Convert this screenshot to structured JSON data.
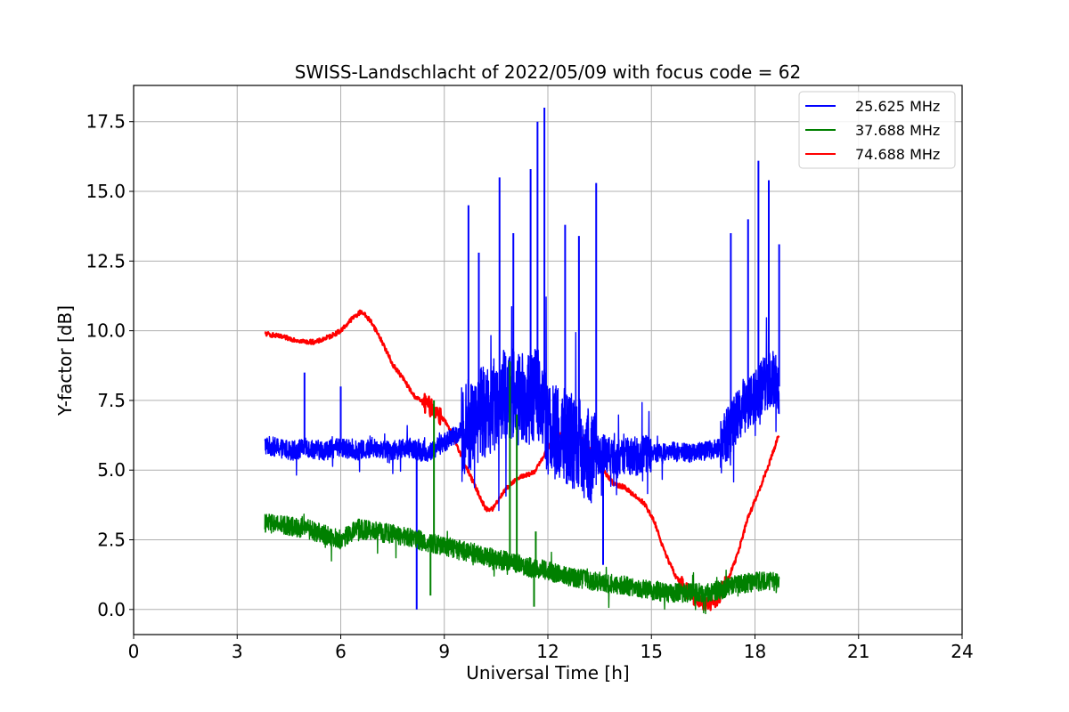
{
  "chart_data": {
    "type": "line",
    "title": "SWISS-Landschlacht of 2022/05/09 with focus code = 62",
    "xlabel": "Universal Time [h]",
    "ylabel": "Y-factor [dB]",
    "xlim": [
      0,
      24
    ],
    "ylim": [
      -0.9,
      18.8
    ],
    "x_ticks": [
      "0",
      "3",
      "6",
      "9",
      "12",
      "15",
      "18",
      "21",
      "24"
    ],
    "y_ticks": [
      "0.0",
      "2.5",
      "5.0",
      "7.5",
      "10.0",
      "12.5",
      "15.0",
      "17.5"
    ],
    "grid": true,
    "legend_position": "top-right",
    "series": [
      {
        "name": "25.625 MHz",
        "color": "#0000ff",
        "x": [
          3.8,
          4.2,
          4.6,
          5.0,
          5.5,
          6.0,
          6.5,
          7.0,
          7.5,
          8.0,
          8.5,
          9.0,
          9.4,
          9.7,
          10.0,
          10.3,
          10.6,
          11.0,
          11.4,
          11.8,
          12.0,
          12.4,
          12.8,
          13.2,
          13.6,
          14.0,
          14.5,
          15.0,
          15.5,
          16.0,
          16.5,
          17.0,
          17.3,
          17.6,
          17.9,
          18.2,
          18.5,
          18.7
        ],
        "y": [
          5.9,
          5.8,
          5.7,
          5.8,
          5.7,
          5.8,
          5.7,
          5.8,
          5.7,
          5.8,
          5.6,
          6.0,
          6.3,
          6.6,
          7.0,
          7.2,
          7.6,
          7.8,
          7.5,
          7.8,
          6.5,
          6.2,
          6.0,
          5.5,
          5.6,
          5.4,
          5.5,
          5.6,
          5.7,
          5.6,
          5.7,
          5.8,
          6.5,
          7.2,
          7.5,
          8.0,
          8.3,
          8.0
        ],
        "spikes": [
          [
            4.95,
            8.5
          ],
          [
            6.0,
            8.0
          ],
          [
            8.2,
            0.0
          ],
          [
            9.7,
            14.5
          ],
          [
            10.0,
            12.8
          ],
          [
            10.6,
            15.5
          ],
          [
            11.0,
            13.5
          ],
          [
            11.5,
            15.8
          ],
          [
            11.7,
            17.5
          ],
          [
            11.9,
            18.0
          ],
          [
            12.5,
            13.8
          ],
          [
            12.9,
            13.4
          ],
          [
            13.4,
            15.3
          ],
          [
            13.6,
            1.6
          ],
          [
            17.3,
            13.5
          ],
          [
            17.8,
            14.0
          ],
          [
            18.1,
            16.1
          ],
          [
            18.4,
            15.4
          ],
          [
            18.7,
            13.1
          ]
        ]
      },
      {
        "name": "37.688 MHz",
        "color": "#008000",
        "x": [
          3.8,
          4.5,
          5.0,
          5.5,
          6.0,
          6.5,
          7.0,
          7.5,
          8.0,
          8.5,
          9.0,
          9.5,
          10.0,
          10.5,
          11.0,
          11.5,
          12.0,
          12.5,
          13.0,
          13.5,
          14.0,
          14.5,
          15.0,
          15.5,
          16.0,
          16.5,
          17.0,
          17.5,
          18.0,
          18.5,
          18.7
        ],
        "y": [
          3.1,
          3.0,
          2.9,
          2.7,
          2.5,
          2.9,
          2.8,
          2.7,
          2.6,
          2.4,
          2.3,
          2.1,
          2.0,
          1.8,
          1.7,
          1.5,
          1.4,
          1.2,
          1.1,
          1.0,
          0.9,
          0.8,
          0.7,
          0.6,
          0.6,
          0.6,
          0.7,
          0.9,
          1.0,
          1.0,
          0.9
        ],
        "spikes": [
          [
            8.6,
            0.5
          ],
          [
            8.7,
            7.5
          ],
          [
            10.9,
            8.9
          ],
          [
            11.1,
            7.0
          ],
          [
            11.6,
            0.1
          ],
          [
            11.65,
            2.8
          ]
        ]
      },
      {
        "name": "74.688 MHz",
        "color": "#ff0000",
        "x": [
          3.8,
          4.2,
          4.6,
          5.0,
          5.3,
          5.7,
          6.0,
          6.3,
          6.6,
          6.9,
          7.2,
          7.5,
          7.8,
          8.1,
          8.4,
          8.7,
          9.0,
          9.3,
          9.6,
          9.9,
          10.2,
          10.4,
          10.7,
          11.0,
          11.3,
          11.6,
          12.0,
          12.4,
          12.7,
          13.0,
          13.3,
          13.6,
          13.9,
          14.2,
          14.5,
          14.8,
          15.1,
          15.4,
          15.7,
          16.0,
          16.3,
          16.6,
          16.9,
          17.2,
          17.5,
          17.8,
          18.1,
          18.4,
          18.7
        ],
        "y": [
          9.9,
          9.8,
          9.7,
          9.6,
          9.6,
          9.8,
          10.0,
          10.4,
          10.7,
          10.3,
          9.6,
          8.8,
          8.3,
          7.7,
          7.4,
          7.2,
          6.8,
          6.1,
          5.2,
          4.4,
          3.6,
          3.6,
          4.2,
          4.6,
          4.8,
          4.9,
          5.8,
          6.3,
          6.5,
          6.1,
          5.6,
          5.0,
          4.5,
          4.4,
          4.1,
          3.8,
          3.1,
          2.0,
          1.2,
          0.7,
          0.4,
          0.2,
          0.4,
          1.0,
          2.0,
          3.3,
          4.2,
          5.2,
          6.3
        ]
      }
    ]
  }
}
